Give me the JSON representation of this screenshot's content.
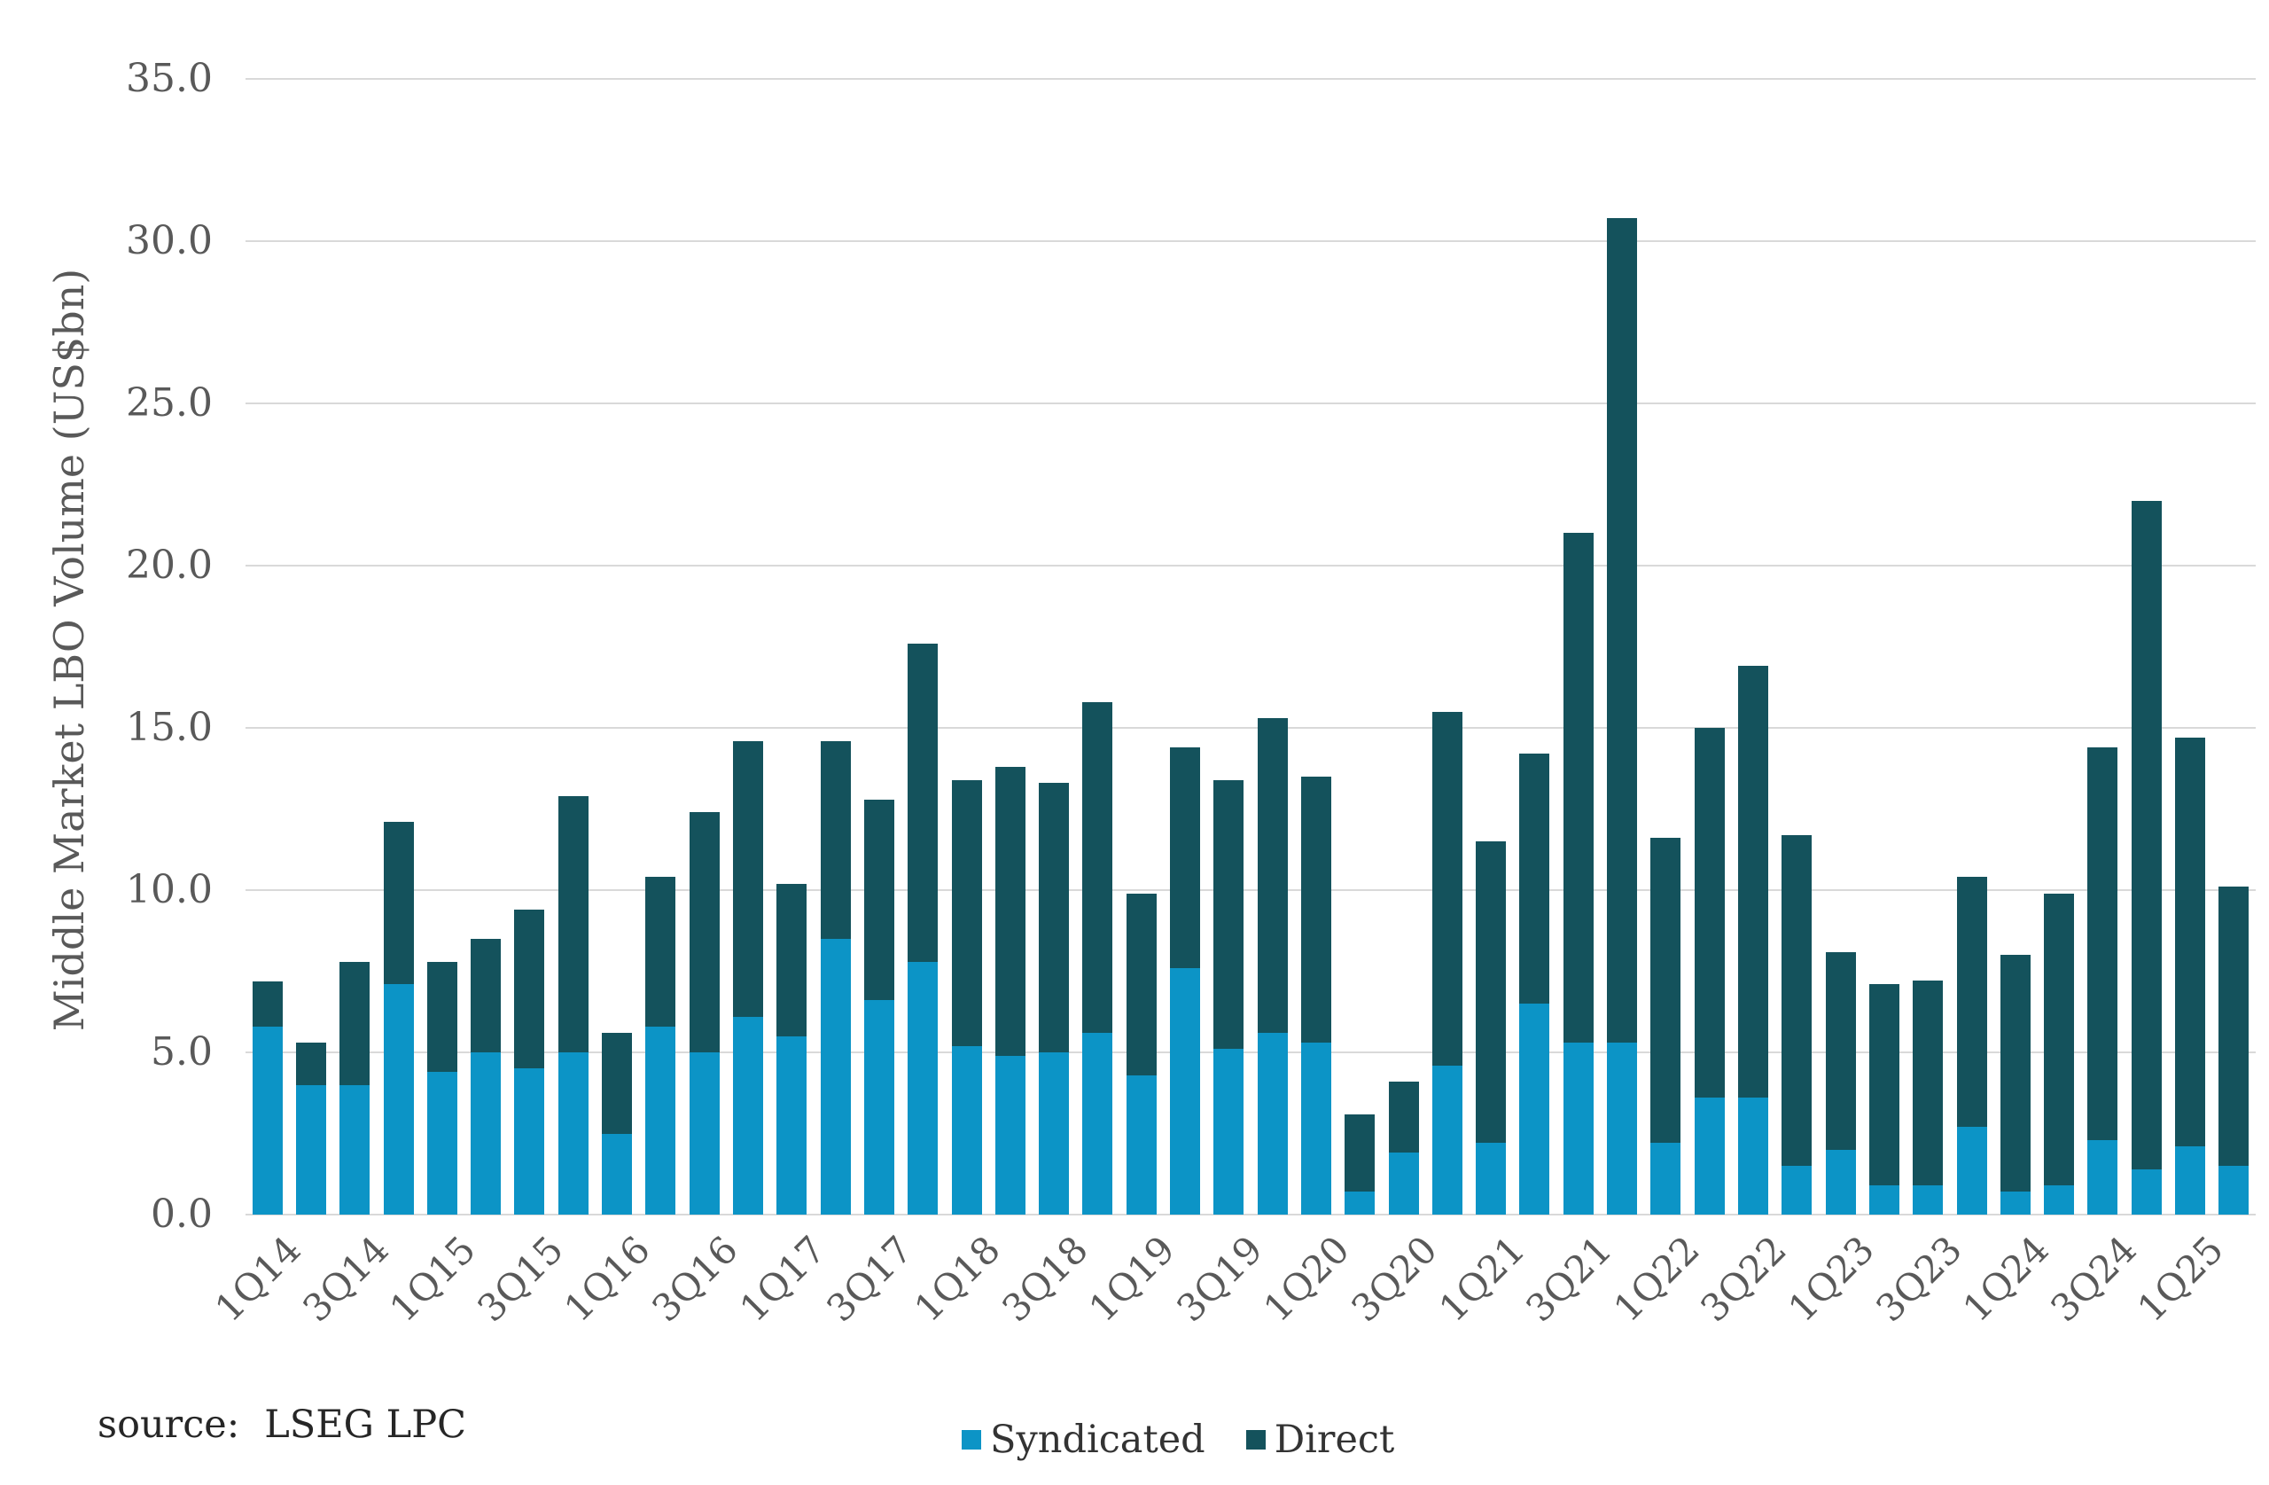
{
  "y_axis": {
    "title": "Middle Market LBO Volume (US$bn)",
    "ticks": [
      "0.0",
      "5.0",
      "10.0",
      "15.0",
      "20.0",
      "25.0",
      "30.0",
      "35.0"
    ]
  },
  "source": {
    "label": "source:",
    "value": "LSEG LPC"
  },
  "legend": [
    {
      "label": "Syndicated",
      "color": "#0c94c6"
    },
    {
      "label": "Direct",
      "color": "#14525c"
    }
  ],
  "colors": {
    "syndicated": "#0c94c6",
    "direct": "#14525c",
    "gridline": "#d9d9d9",
    "axis_text": "#595959"
  },
  "chart_data": {
    "type": "bar",
    "stacked": true,
    "title": "",
    "xlabel": "",
    "ylabel": "Middle Market LBO Volume (US$bn)",
    "ylim": [
      0,
      35
    ],
    "ytick_step": 5,
    "grid": true,
    "legend_position": "bottom-center",
    "categories": [
      "1Q14",
      "2Q14",
      "3Q14",
      "4Q14",
      "1Q15",
      "2Q15",
      "3Q15",
      "4Q15",
      "1Q16",
      "2Q16",
      "3Q16",
      "4Q16",
      "1Q17",
      "2Q17",
      "3Q17",
      "4Q17",
      "1Q18",
      "2Q18",
      "3Q18",
      "4Q18",
      "1Q19",
      "2Q19",
      "3Q19",
      "4Q19",
      "1Q20",
      "2Q20",
      "3Q20",
      "4Q20",
      "1Q21",
      "2Q21",
      "3Q21",
      "4Q21",
      "1Q22",
      "2Q22",
      "3Q22",
      "4Q22",
      "1Q23",
      "2Q23",
      "3Q23",
      "4Q23",
      "1Q24",
      "2Q24",
      "3Q24",
      "4Q24",
      "1Q25",
      "2Q25"
    ],
    "x_tick_labels": [
      "1Q14",
      "3Q14",
      "1Q15",
      "3Q15",
      "1Q16",
      "3Q16",
      "1Q17",
      "3Q17",
      "1Q18",
      "3Q18",
      "1Q19",
      "3Q19",
      "1Q20",
      "3Q20",
      "1Q21",
      "3Q21",
      "1Q22",
      "3Q22",
      "1Q23",
      "3Q23",
      "1Q24",
      "3Q24",
      "1Q25"
    ],
    "series": [
      {
        "name": "Syndicated",
        "color": "#0c94c6",
        "values": [
          5.8,
          4.0,
          4.0,
          7.1,
          4.4,
          5.0,
          4.5,
          5.0,
          2.5,
          5.8,
          5.0,
          6.1,
          5.5,
          8.5,
          6.6,
          7.8,
          5.2,
          4.9,
          5.0,
          5.6,
          4.3,
          7.6,
          5.1,
          5.6,
          5.3,
          0.7,
          1.9,
          4.6,
          2.2,
          6.5,
          5.3,
          5.3,
          2.2,
          3.6,
          3.6,
          1.5,
          2.0,
          0.9,
          0.9,
          2.7,
          0.7,
          0.9,
          2.3,
          1.4,
          2.1,
          1.5
        ]
      },
      {
        "name": "Direct",
        "color": "#14525c",
        "values": [
          1.4,
          1.3,
          3.8,
          5.0,
          3.4,
          3.5,
          4.9,
          7.9,
          3.1,
          4.6,
          7.4,
          8.5,
          4.7,
          6.1,
          6.2,
          9.8,
          8.2,
          8.9,
          8.3,
          10.2,
          5.6,
          6.8,
          8.3,
          9.7,
          8.2,
          2.4,
          2.2,
          10.9,
          9.3,
          7.7,
          15.7,
          25.4,
          9.4,
          11.4,
          13.3,
          10.2,
          6.1,
          6.2,
          6.3,
          7.7,
          7.3,
          9.0,
          12.1,
          20.6,
          12.6,
          8.6
        ]
      }
    ],
    "totals": [
      7.2,
      5.3,
      7.8,
      12.1,
      7.8,
      8.5,
      9.4,
      12.9,
      5.6,
      10.4,
      12.4,
      14.6,
      10.2,
      14.6,
      12.8,
      17.6,
      13.4,
      13.8,
      13.3,
      15.8,
      9.9,
      14.4,
      13.4,
      15.3,
      13.5,
      3.1,
      4.1,
      15.5,
      11.5,
      14.2,
      21.0,
      30.7,
      11.6,
      15.0,
      16.9,
      11.7,
      8.1,
      7.1,
      7.2,
      10.4,
      8.0,
      9.9,
      14.4,
      22.0,
      14.7,
      10.1
    ]
  }
}
